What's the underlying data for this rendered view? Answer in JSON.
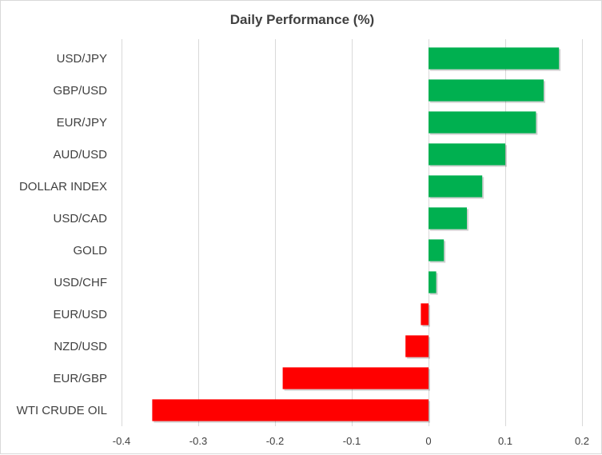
{
  "chart_data": {
    "type": "bar",
    "orientation": "horizontal",
    "title": "Daily Performance  (%)",
    "xlabel": "",
    "ylabel": "",
    "categories": [
      "USD/JPY",
      "GBP/USD",
      "EUR/JPY",
      "AUD/USD",
      "DOLLAR INDEX",
      "USD/CAD",
      "GOLD",
      "USD/CHF",
      "EUR/USD",
      "NZD/USD",
      "EUR/GBP",
      "WTI CRUDE OIL"
    ],
    "values": [
      0.17,
      0.15,
      0.14,
      0.1,
      0.07,
      0.05,
      0.02,
      0.01,
      -0.01,
      -0.03,
      -0.19,
      -0.36
    ],
    "xlim": [
      -0.4,
      0.2
    ],
    "xticks": [
      -0.4,
      -0.3,
      -0.2,
      -0.1,
      0,
      0.1,
      0.2
    ],
    "xtick_labels": [
      "-0.4",
      "-0.3",
      "-0.2",
      "-0.1",
      "0",
      "0.1",
      "0.2"
    ],
    "grid": true,
    "legend": "none",
    "colors": {
      "positive": "#00b050",
      "negative": "#ff0000",
      "grid": "#d9d9d9",
      "text": "#404040"
    }
  }
}
